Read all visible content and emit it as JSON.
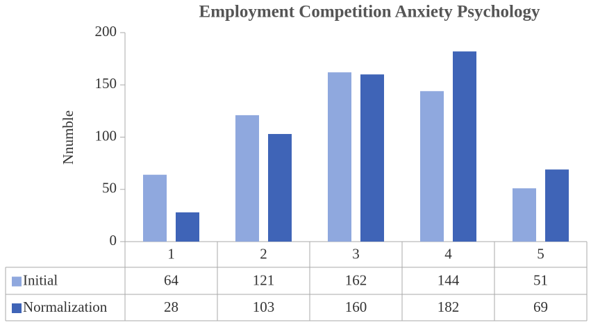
{
  "chart_data": {
    "type": "bar",
    "title": "Employment Competition Anxiety Psychology",
    "y_label": "Nnumble",
    "categories": [
      "1",
      "2",
      "3",
      "4",
      "5"
    ],
    "series": [
      {
        "name": "Initial",
        "color": "#8fa8de",
        "values": [
          64,
          121,
          162,
          144,
          51
        ]
      },
      {
        "name": "Normalization",
        "color": "#3f64b7",
        "values": [
          28,
          103,
          160,
          182,
          69
        ]
      }
    ],
    "ylim": [
      0,
      200
    ],
    "yticks": [
      0,
      50,
      100,
      150,
      200
    ],
    "grid": false,
    "data_table": true
  }
}
